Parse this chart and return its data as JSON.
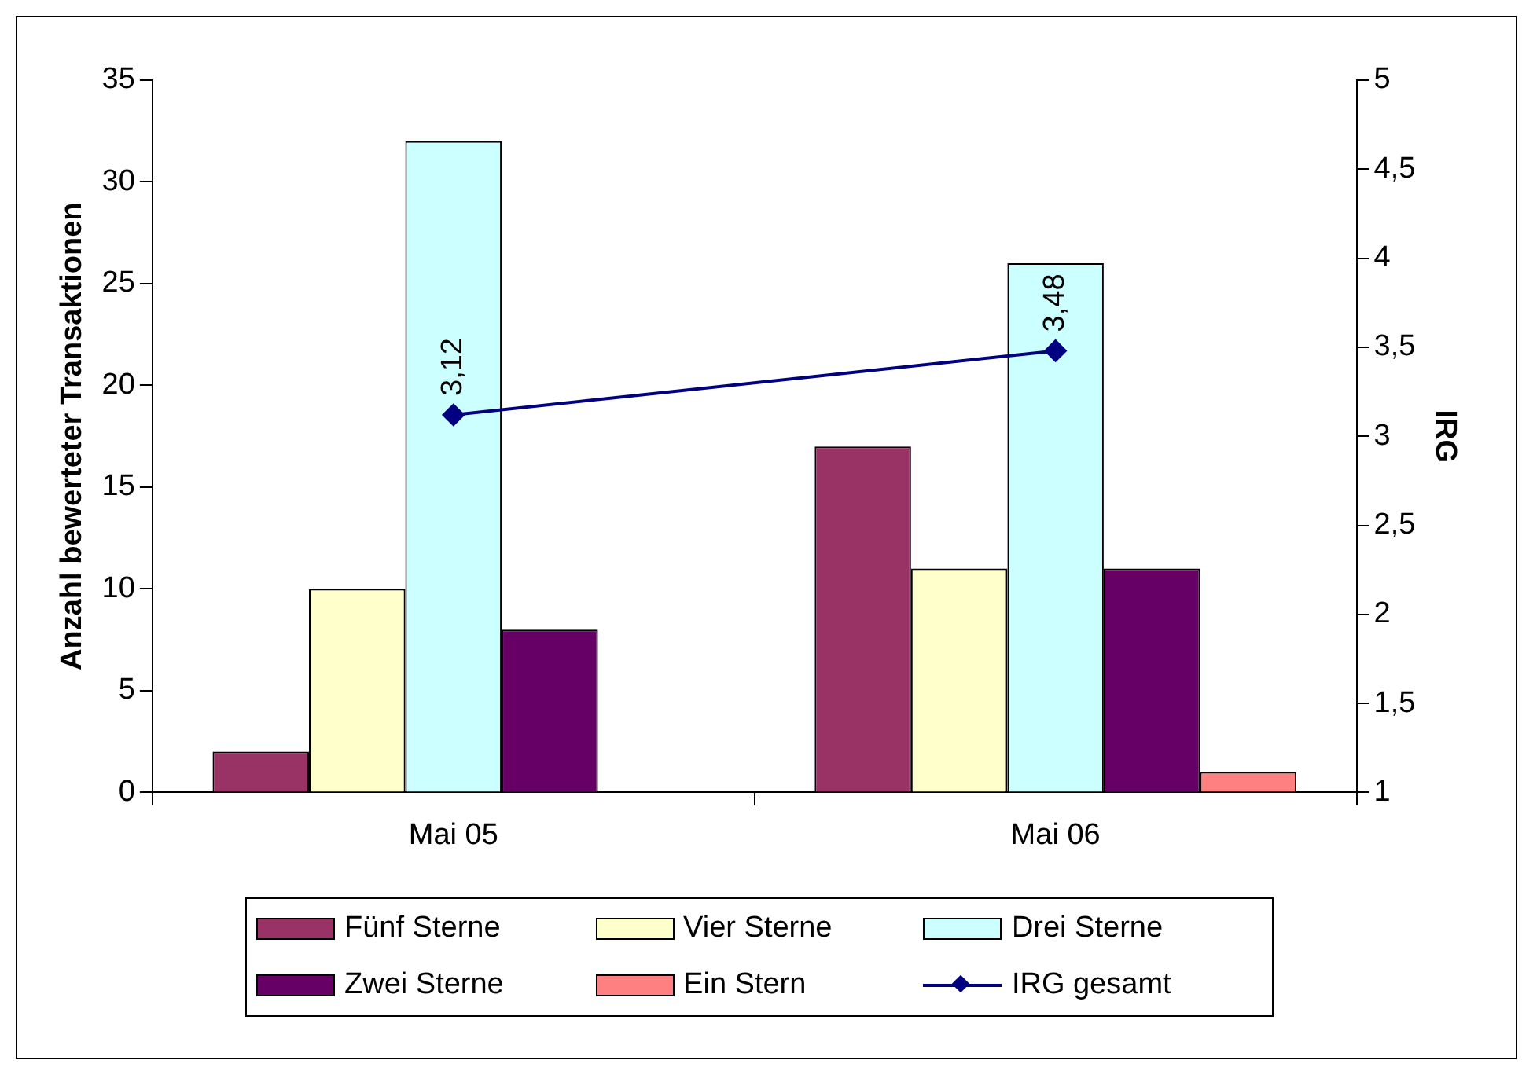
{
  "chart_data": {
    "type": "bar",
    "categories": [
      "Mai 05",
      "Mai 06"
    ],
    "ylabel": "Anzahl bewerteter Transaktionen",
    "y2label": "IRG",
    "ylim": [
      0,
      35
    ],
    "yticks": [
      0,
      5,
      10,
      15,
      20,
      25,
      30,
      35
    ],
    "y2lim": [
      1,
      5
    ],
    "y2ticks": [
      1,
      {
        "value": 1.5,
        "label": "1,5"
      },
      2,
      {
        "value": 2.5,
        "label": "2,5"
      },
      3,
      {
        "value": 3.5,
        "label": "3,5"
      },
      4,
      {
        "value": 4.5,
        "label": "4,5"
      },
      5
    ],
    "grid": false,
    "legend": "bottom",
    "series": [
      {
        "name": "Fünf Sterne",
        "color": "#993366",
        "values": [
          2,
          17
        ]
      },
      {
        "name": "Vier Sterne",
        "color": "#ffffcc",
        "values": [
          10,
          11
        ]
      },
      {
        "name": "Drei Sterne",
        "color": "#ccffff",
        "values": [
          32,
          26
        ]
      },
      {
        "name": "Zwei Sterne",
        "color": "#660066",
        "values": [
          8,
          11
        ]
      },
      {
        "name": "Ein Stern",
        "color": "#ff8080",
        "values": [
          0,
          1
        ]
      },
      {
        "name": "IRG gesamt",
        "type": "line",
        "axis": "y2",
        "color": "#000080",
        "marker": "diamond",
        "values": [
          3.12,
          3.48
        ],
        "value_labels": [
          "3,12",
          "3,48"
        ]
      }
    ]
  }
}
